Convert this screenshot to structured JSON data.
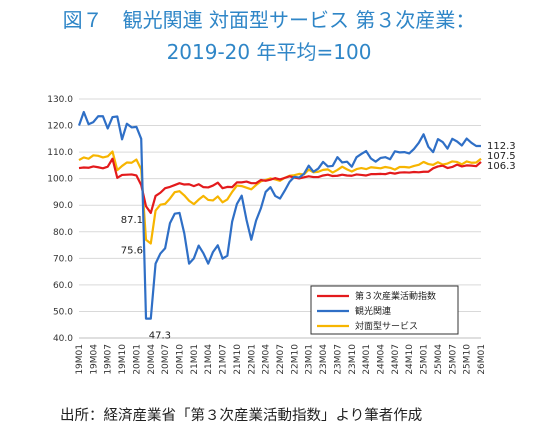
{
  "title_line1": "図７　観光関連 対面型サービス 第３次産業：",
  "title_line2": "2019-20 年平均=100",
  "source": "出所：経済産業省「第３次産業活動指数」より筆者作成",
  "chart_data": {
    "type": "line",
    "title": "図７　観光関連 対面型サービス 第３次産業：2019-20 年平均=100",
    "xlabel": "",
    "ylabel": "",
    "ylim": [
      40,
      130
    ],
    "yticks": [
      "130.0",
      "120.0",
      "110.0",
      "100.0",
      "90.0",
      "80.0",
      "70.0",
      "60.0",
      "50.0",
      "40.0"
    ],
    "xtick_labels": [
      "19M01",
      "19M04",
      "19M07",
      "19M10",
      "20M01",
      "20M04",
      "20M07",
      "20M10",
      "21M01",
      "21M04",
      "21M07",
      "21M10",
      "22M01",
      "22M04",
      "22M07",
      "22M10",
      "23M01",
      "23M04",
      "23M07",
      "23M10",
      "24M01",
      "24M04",
      "24M07",
      "24M10",
      "25M01",
      "25M04",
      "25M07",
      "25M10",
      "26M01"
    ],
    "x_start": "2019-01",
    "n_months": 85,
    "grid": true,
    "legend_position": "lower-right",
    "series": [
      {
        "name": "第３次産業活動指数",
        "color": "#e31a1c",
        "values": [
          104.0,
          104.2,
          104.1,
          104.6,
          104.3,
          103.9,
          104.5,
          107.5,
          100.3,
          101.4,
          101.5,
          101.6,
          101.2,
          97.6,
          89.6,
          87.1,
          93.5,
          94.7,
          96.4,
          96.9,
          97.6,
          98.3,
          97.8,
          97.9,
          97.2,
          97.9,
          96.8,
          96.7,
          97.4,
          98.5,
          96.4,
          96.9,
          96.8,
          98.6,
          98.6,
          98.9,
          98.3,
          98.3,
          99.5,
          99.2,
          99.6,
          100.2,
          99.7,
          100.3,
          100.9,
          100.4,
          100.1,
          100.5,
          100.9,
          100.6,
          100.6,
          101.2,
          101.5,
          101.0,
          101.1,
          101.5,
          101.2,
          101.1,
          101.6,
          101.4,
          101.2,
          101.7,
          101.7,
          101.8,
          101.7,
          102.2,
          101.9,
          102.3,
          102.4,
          102.3,
          102.5,
          102.4,
          102.6,
          102.6,
          103.9,
          104.6,
          104.9,
          104.0,
          104.4,
          105.3,
          104.6,
          105.0,
          104.9,
          104.7,
          106.3
        ]
      },
      {
        "name": "観光関連",
        "color": "#2f6fc6",
        "values": [
          120.0,
          125.1,
          120.5,
          121.3,
          123.5,
          123.5,
          118.9,
          123.2,
          123.4,
          114.8,
          120.7,
          119.3,
          119.5,
          115.0,
          47.3,
          47.3,
          68.0,
          71.8,
          73.8,
          83.2,
          86.8,
          87.1,
          79.4,
          68.0,
          70.0,
          74.8,
          71.9,
          68.0,
          72.4,
          74.9,
          69.9,
          71.0,
          83.8,
          90.5,
          93.6,
          84.5,
          77.0,
          84.2,
          88.8,
          95.0,
          96.8,
          93.5,
          92.5,
          95.5,
          98.8,
          100.7,
          100.4,
          101.8,
          104.9,
          102.6,
          103.8,
          106.3,
          104.6,
          104.8,
          108.1,
          106.1,
          106.4,
          104.5,
          108.1,
          109.3,
          110.4,
          107.6,
          106.4,
          107.8,
          108.1,
          107.3,
          110.3,
          109.9,
          110.0,
          109.5,
          111.2,
          113.5,
          116.7,
          112.0,
          110.0,
          114.9,
          113.8,
          111.3,
          115.0,
          114.0,
          112.5,
          115.1,
          113.5,
          112.3,
          112.3
        ]
      },
      {
        "name": "対面型サービス",
        "color": "#f7b500",
        "values": [
          107.0,
          108.0,
          107.5,
          108.8,
          108.6,
          108.0,
          108.4,
          110.2,
          103.2,
          104.8,
          106.1,
          106.0,
          107.2,
          103.5,
          77.0,
          75.6,
          88.0,
          90.2,
          90.5,
          92.5,
          94.9,
          95.3,
          93.7,
          91.7,
          90.4,
          92.1,
          93.5,
          92.0,
          91.8,
          93.3,
          91.1,
          92.2,
          95.0,
          97.4,
          97.2,
          96.6,
          96.0,
          97.6,
          99.0,
          99.5,
          100.1,
          99.7,
          99.2,
          100.3,
          101.1,
          101.3,
          101.8,
          101.6,
          103.4,
          102.4,
          102.6,
          103.3,
          103.5,
          102.3,
          103.3,
          104.5,
          103.5,
          102.7,
          103.6,
          104.0,
          103.6,
          104.3,
          104.1,
          103.9,
          104.4,
          104.1,
          103.4,
          104.4,
          104.4,
          104.2,
          104.8,
          105.2,
          106.3,
          105.5,
          105.2,
          106.2,
          105.3,
          105.7,
          106.5,
          106.3,
          105.4,
          106.5,
          106.0,
          106.1,
          107.5
        ]
      }
    ],
    "annotations": [
      {
        "text": "87.1",
        "series": 0,
        "index": 15
      },
      {
        "text": "75.6",
        "series": 2,
        "index": 15
      },
      {
        "text": "47.3",
        "series": 1,
        "index": 15
      },
      {
        "text": "112.3",
        "series": 1,
        "index": 84
      },
      {
        "text": "107.5",
        "series": 2,
        "index": 84
      },
      {
        "text": "106.3",
        "series": 0,
        "index": 84
      }
    ]
  }
}
